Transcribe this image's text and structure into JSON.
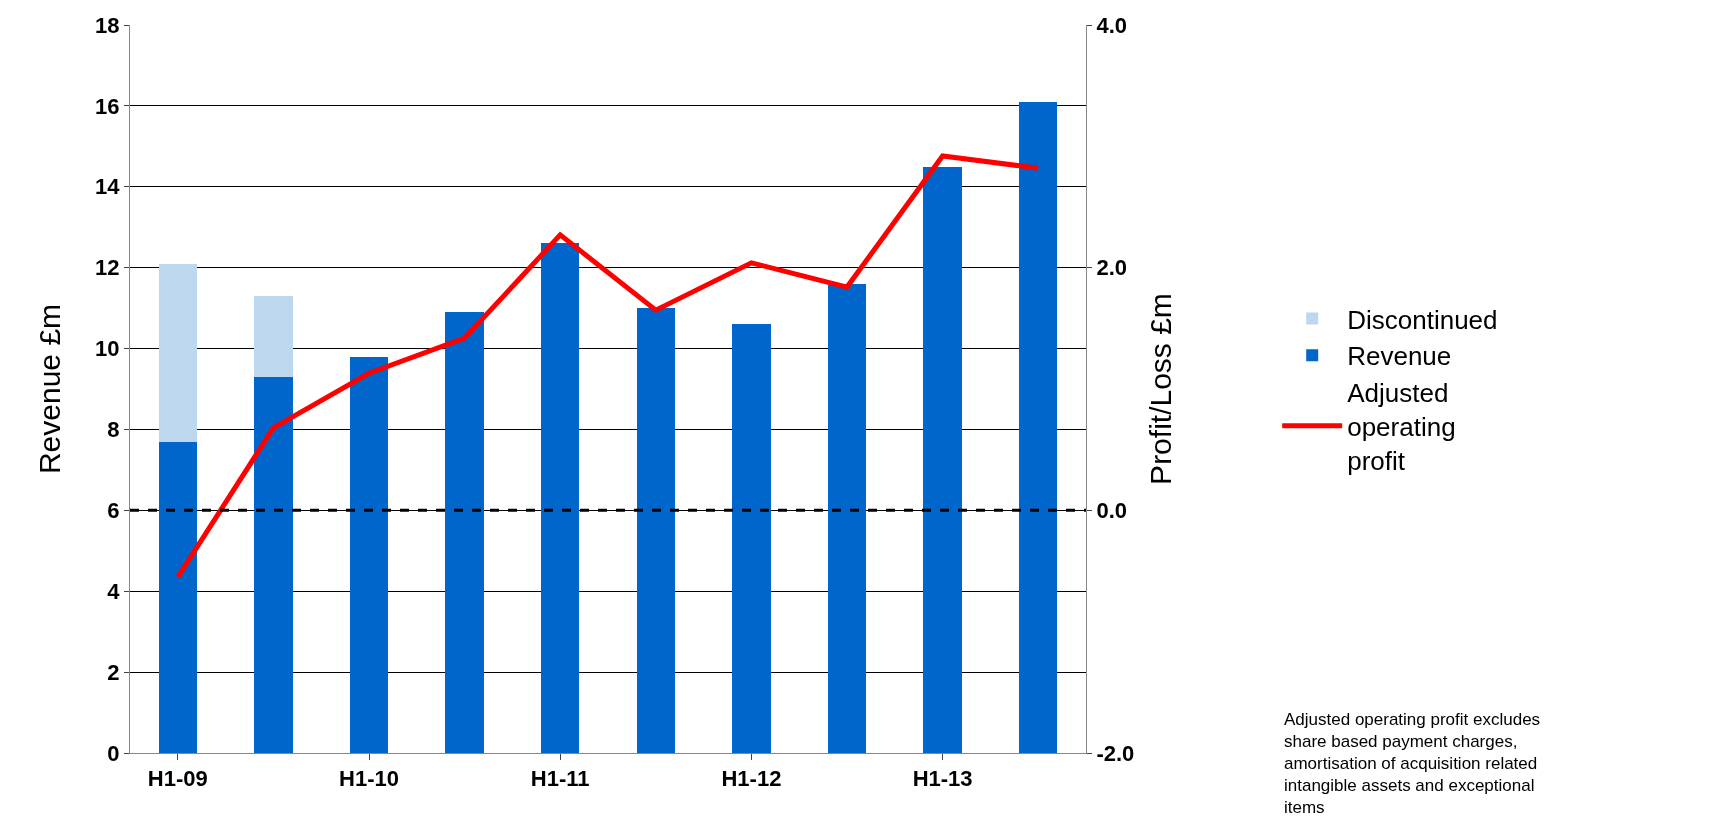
{
  "chart_data": {
    "type": "bar",
    "stacked": true,
    "categories": [
      "H1-09",
      null,
      "H1-10",
      null,
      "H1-11",
      null,
      "H1-12",
      null,
      "H1-13",
      null
    ],
    "series": [
      {
        "name": "Revenue",
        "color": "#0066cc",
        "values": [
          7.7,
          9.3,
          9.8,
          10.9,
          12.6,
          11.0,
          10.6,
          11.6,
          14.5,
          16.1
        ]
      },
      {
        "name": "Discontinued",
        "color": "#bdd7ee",
        "values": [
          4.4,
          2.0,
          null,
          null,
          null,
          null,
          null,
          null,
          null,
          null
        ]
      },
      {
        "name": "Adjusted operating profit",
        "type": "line",
        "axis": "y2",
        "color": "#ff0000",
        "marker": "none",
        "line_style": "solid",
        "values": [
          -0.55,
          0.68,
          1.13,
          1.42,
          2.27,
          1.65,
          2.04,
          1.84,
          2.92,
          2.82
        ]
      }
    ],
    "ylabel": "Revenue £m",
    "y2label": "Profit/Loss £m",
    "ylim": [
      0,
      18
    ],
    "yticks": [
      0,
      2,
      4,
      6,
      8,
      10,
      12,
      14,
      16,
      18
    ],
    "y2lim": [
      -2,
      4
    ],
    "y2ticks": [
      {
        "value": -2,
        "label": "-2.0"
      },
      {
        "value": 0,
        "label": "0.0"
      },
      {
        "value": 2,
        "label": "2.0"
      },
      {
        "value": 4,
        "label": "4.0"
      }
    ],
    "ref_lines": [
      {
        "axis": "y2",
        "value": 0,
        "color": "#000000",
        "line_style": "dashed"
      }
    ],
    "grid": "y",
    "legend": "right",
    "annotations": [
      "Adjusted operating profit excludes share based payment charges, amortisation of acquisition related intangible assets and exceptional items"
    ]
  }
}
